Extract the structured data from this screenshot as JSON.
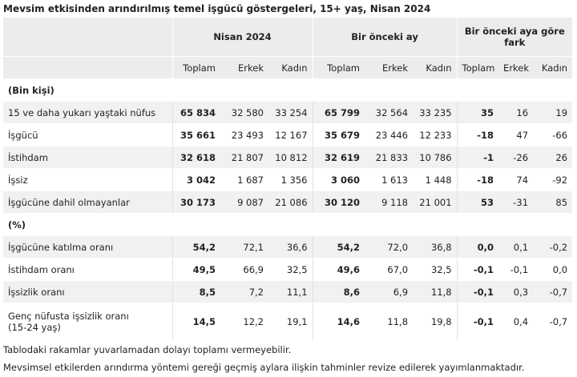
{
  "title": "Mevsim etkisinden arındırılmış temel işgücü göstergeleri, 15+ yaş, Nisan 2024",
  "header": {
    "groups": [
      "Nisan 2024",
      "Bir önceki ay",
      "Bir önceki aya göre fark"
    ],
    "columns": [
      "Toplam",
      "Erkek",
      "Kadın",
      "Toplam",
      "Erkek",
      "Kadın",
      "Toplam",
      "Erkek",
      "Kadın"
    ]
  },
  "sections": [
    {
      "label": "(Bin kişi)",
      "rows": [
        {
          "label": "15 ve daha yukarı yaştaki nüfus",
          "values": [
            "65 834",
            "32 580",
            "33 254",
            "65 799",
            "32 564",
            "33 235",
            "35",
            "16",
            "19"
          ]
        },
        {
          "label": "İşgücü",
          "values": [
            "35 661",
            "23 493",
            "12 167",
            "35 679",
            "23 446",
            "12 233",
            "-18",
            "47",
            "-66"
          ]
        },
        {
          "label": "İstihdam",
          "values": [
            "32 618",
            "21 807",
            "10 812",
            "32 619",
            "21 833",
            "10 786",
            "-1",
            "-26",
            "26"
          ]
        },
        {
          "label": "İşsiz",
          "values": [
            "3 042",
            "1 687",
            "1 356",
            "3 060",
            "1 613",
            "1 448",
            "-18",
            "74",
            "-92"
          ]
        },
        {
          "label": "İşgücüne dahil olmayanlar",
          "values": [
            "30 173",
            "9 087",
            "21 086",
            "30 120",
            "9 118",
            "21 001",
            "53",
            "-31",
            "85"
          ]
        }
      ]
    },
    {
      "label": "(%)",
      "rows": [
        {
          "label": "İşgücüne katılma oranı",
          "values": [
            "54,2",
            "72,1",
            "36,6",
            "54,2",
            "72,0",
            "36,8",
            "0,0",
            "0,1",
            "-0,2"
          ]
        },
        {
          "label": "İstihdam oranı",
          "values": [
            "49,5",
            "66,9",
            "32,5",
            "49,6",
            "67,0",
            "32,5",
            "-0,1",
            "-0,1",
            "0,0"
          ]
        },
        {
          "label": "İşsizlik oranı",
          "values": [
            "8,5",
            "7,2",
            "11,1",
            "8,6",
            "6,9",
            "11,8",
            "-0,1",
            "0,3",
            "-0,7"
          ]
        },
        {
          "label": "Genç nüfusta işsizlik oranı\n(15-24 yaş)",
          "values": [
            "14,5",
            "12,2",
            "19,1",
            "14,6",
            "11,8",
            "19,8",
            "-0,1",
            "0,4",
            "-0,7"
          ]
        }
      ]
    }
  ],
  "footnotes": [
    "Tablodaki rakamlar yuvarlamadan dolayı toplamı vermeyebilir.",
    "Mevsimsel etkilerden arındırma yöntemi gereği geçmiş aylara ilişkin tahminler revize edilerek yayımlanmaktadır."
  ]
}
